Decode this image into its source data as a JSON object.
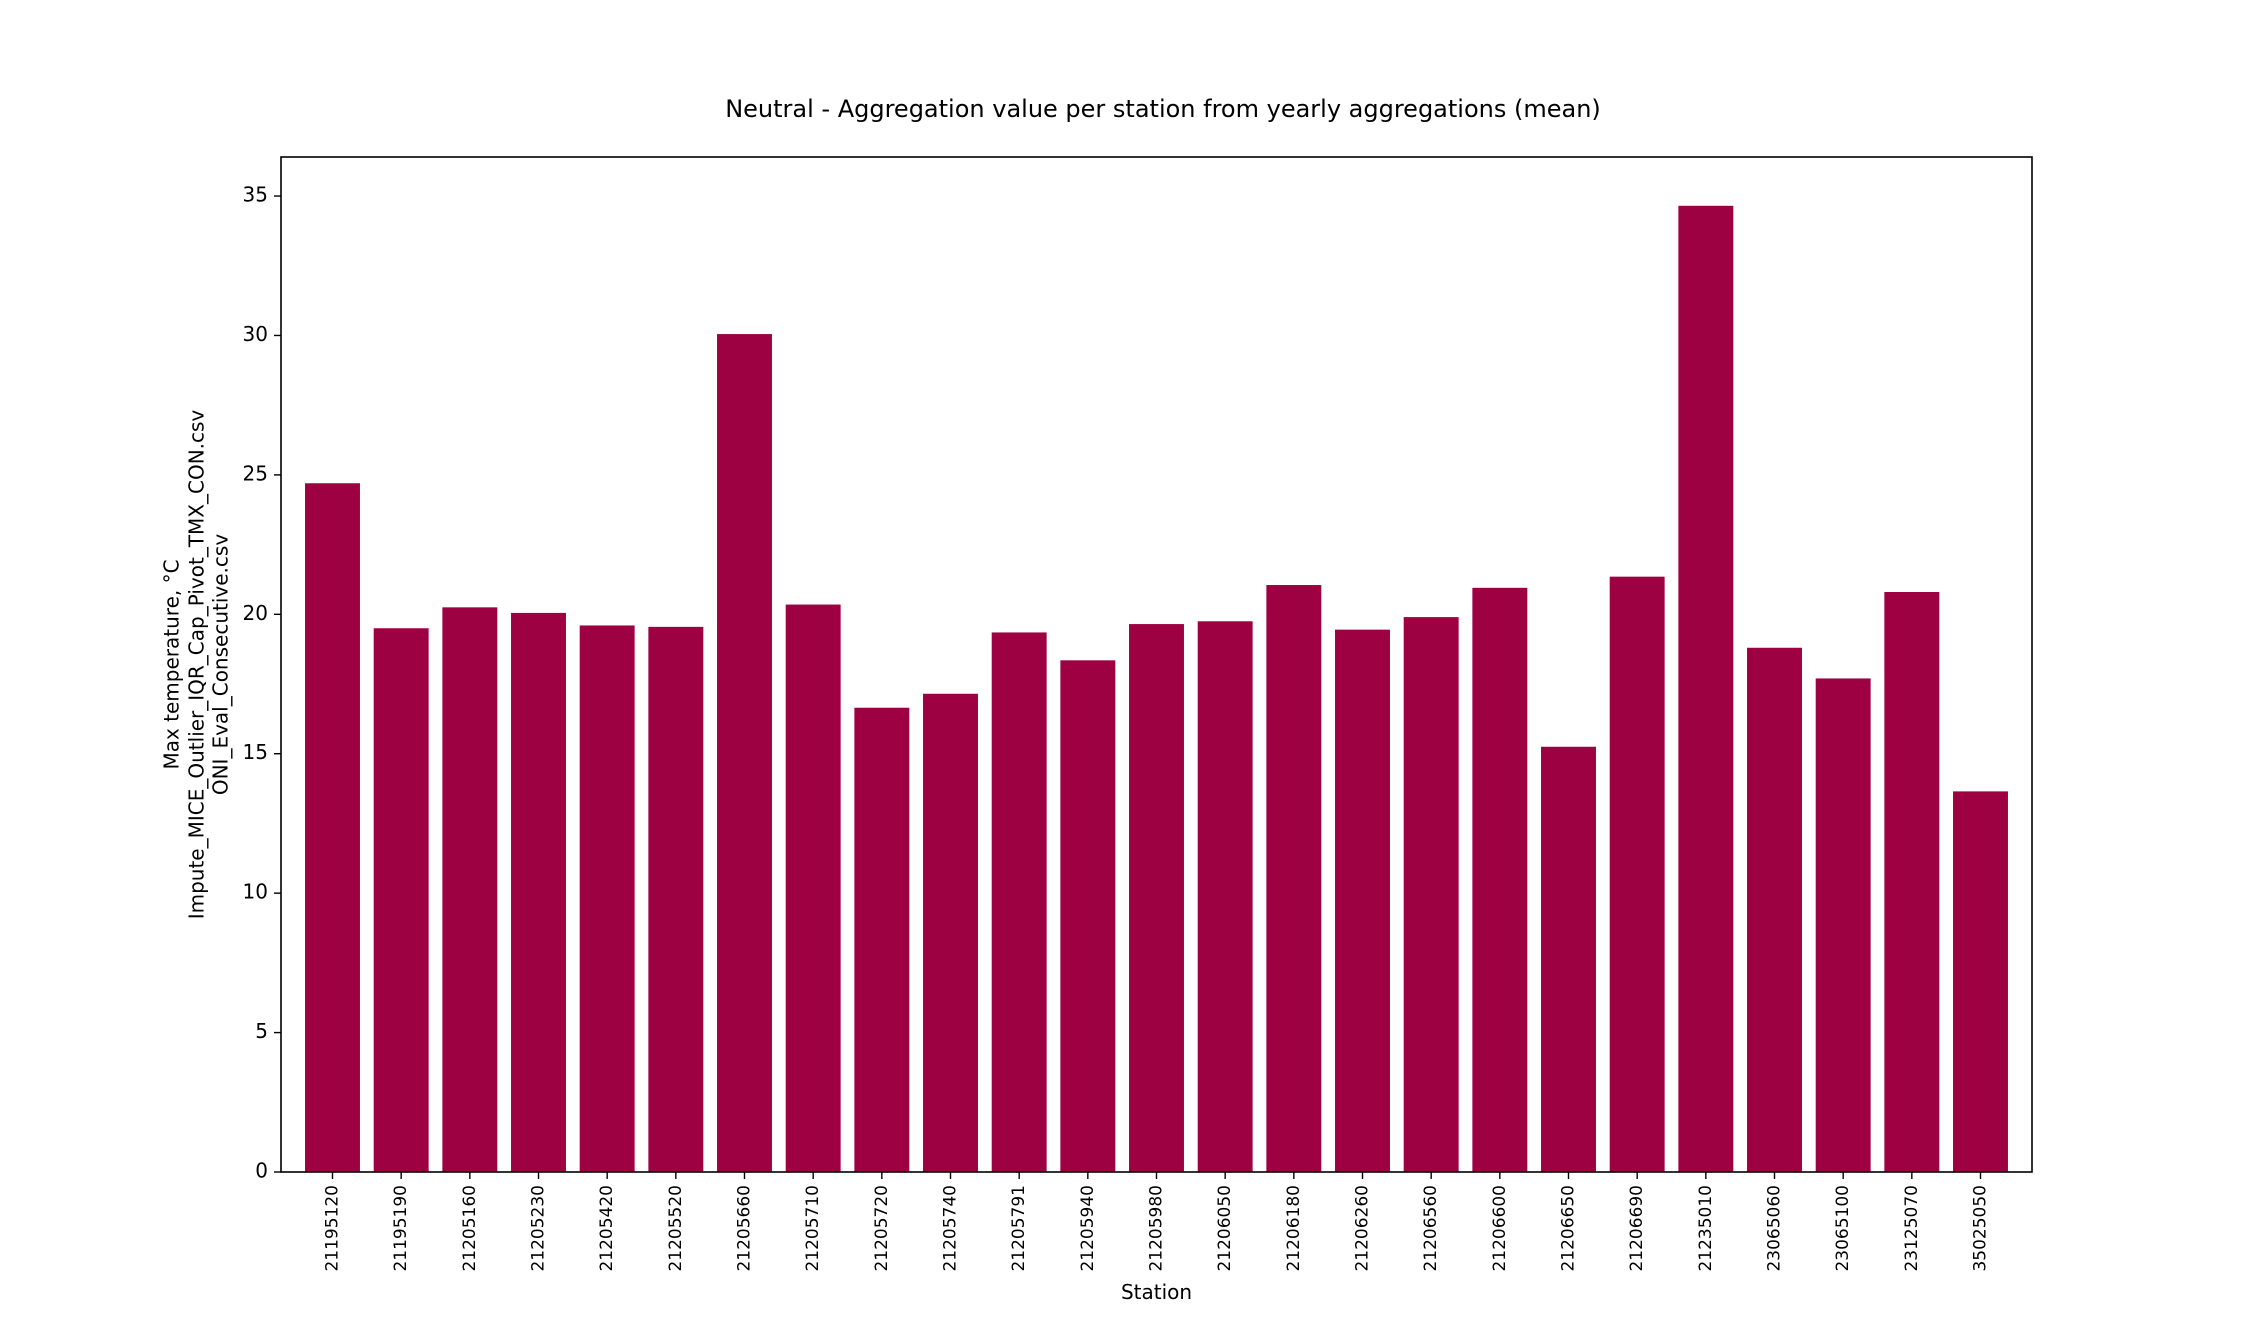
{
  "chart_data": {
    "type": "bar",
    "title": "Neutral - Aggregation value per station from yearly aggregations (mean)",
    "xlabel": "Station",
    "ylabel_lines": [
      "Max temperature, °C",
      "Impute_MICE_Outlier_IQR_Cap_Pivot_TMX_CON.csv",
      "ONI_Eval_Consecutive.csv"
    ],
    "categories": [
      "21195120",
      "21195190",
      "21205160",
      "21205230",
      "21205420",
      "21205520",
      "21205660",
      "21205710",
      "21205720",
      "21205740",
      "21205791",
      "21205940",
      "21205980",
      "21206050",
      "21206180",
      "21206260",
      "21206560",
      "21206600",
      "21206650",
      "21206690",
      "21235010",
      "23065060",
      "23065100",
      "23125070",
      "35025050"
    ],
    "values": [
      24.7,
      19.5,
      20.25,
      20.05,
      19.6,
      19.55,
      30.05,
      20.35,
      16.65,
      17.15,
      19.35,
      18.35,
      19.65,
      19.75,
      21.05,
      19.45,
      19.9,
      20.95,
      15.25,
      21.35,
      34.65,
      18.8,
      17.7,
      20.8,
      13.65
    ],
    "ylim": [
      0,
      36.4
    ],
    "yticks": [
      0,
      5,
      10,
      15,
      20,
      25,
      30,
      35
    ],
    "bar_color": "#9e0142",
    "grid": false
  }
}
